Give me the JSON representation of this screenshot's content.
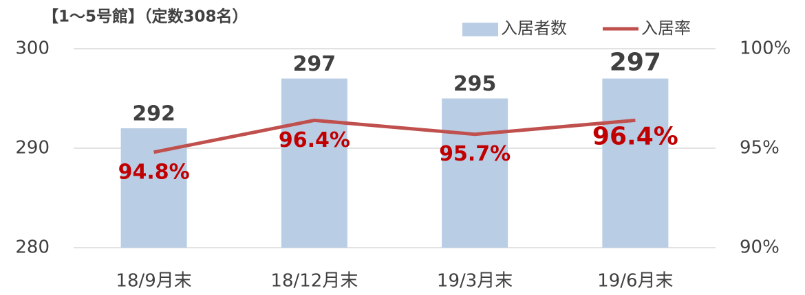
{
  "chart_data": {
    "type": "combo",
    "title": "【1～5号館】（定数308名）",
    "categories": [
      "18/9月末",
      "18/12月末",
      "19/3月末",
      "19/6月末"
    ],
    "series": [
      {
        "name": "入居者数",
        "type": "bar",
        "color": "#b9cde5",
        "values": [
          292,
          297,
          295,
          297
        ]
      },
      {
        "name": "入居率",
        "type": "line",
        "axis": "y2",
        "color": "#c0504d",
        "values": [
          94.8,
          96.4,
          95.7,
          96.4
        ],
        "value_labels": [
          "94.8%",
          "96.4%",
          "95.7%",
          "96.4%"
        ]
      }
    ],
    "ylim": [
      280,
      300
    ],
    "yticks": [
      280,
      290,
      300
    ],
    "y2lim": [
      90,
      100
    ],
    "y2ticks": [
      {
        "value": 90,
        "label": "90%"
      },
      {
        "value": 95,
        "label": "95%"
      },
      {
        "value": 100,
        "label": "100%"
      }
    ],
    "grid": true,
    "legend": "top-right"
  }
}
